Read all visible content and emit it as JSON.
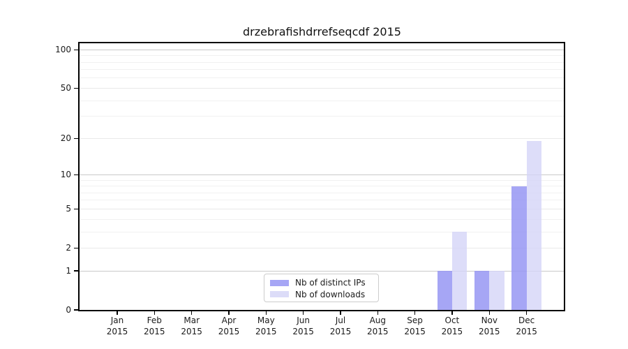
{
  "chart_data": {
    "type": "bar",
    "title": "drzebrafishdrrefseqcdf 2015",
    "categories": [
      "Jan 2015",
      "Feb 2015",
      "Mar 2015",
      "Apr 2015",
      "May 2015",
      "Jun 2015",
      "Jul 2015",
      "Aug 2015",
      "Sep 2015",
      "Oct 2015",
      "Nov 2015",
      "Dec 2015"
    ],
    "series": [
      {
        "name": "Nb of distinct IPs",
        "color": "#a6a6f5",
        "fill": "rgba(150,150,243,0.85)",
        "values": [
          0,
          0,
          0,
          0,
          0,
          0,
          0,
          0,
          0,
          1,
          1,
          8
        ]
      },
      {
        "name": "Nb of downloads",
        "color": "#dcdcf8",
        "fill": "rgba(212,212,247,0.80)",
        "values": [
          0,
          0,
          0,
          0,
          0,
          0,
          0,
          0,
          0,
          3,
          1,
          19
        ]
      }
    ],
    "yscale": "log1p",
    "ylim": [
      0,
      113
    ],
    "yticks": [
      0,
      1,
      2,
      5,
      10,
      20,
      50,
      100
    ],
    "grid": {
      "decade_lines": [
        1,
        10,
        100
      ],
      "labeled_minor_lines": [
        2,
        5,
        20,
        50
      ],
      "minor_lines": [
        3,
        4,
        6,
        7,
        8,
        9,
        30,
        40,
        60,
        70,
        80,
        90
      ]
    },
    "legend": {
      "position": "lower center",
      "entries": [
        "Nb of distinct IPs",
        "Nb of downloads"
      ]
    }
  },
  "colors": {
    "figure_bg": "#ffffff",
    "decade_grid": "#c9c9c9",
    "soft_grid": "#e9e9e9",
    "minor_grid": "#f1f1f1",
    "spine": "#000000",
    "text": "#1a1a1a",
    "legend_border": "#cccccc"
  }
}
